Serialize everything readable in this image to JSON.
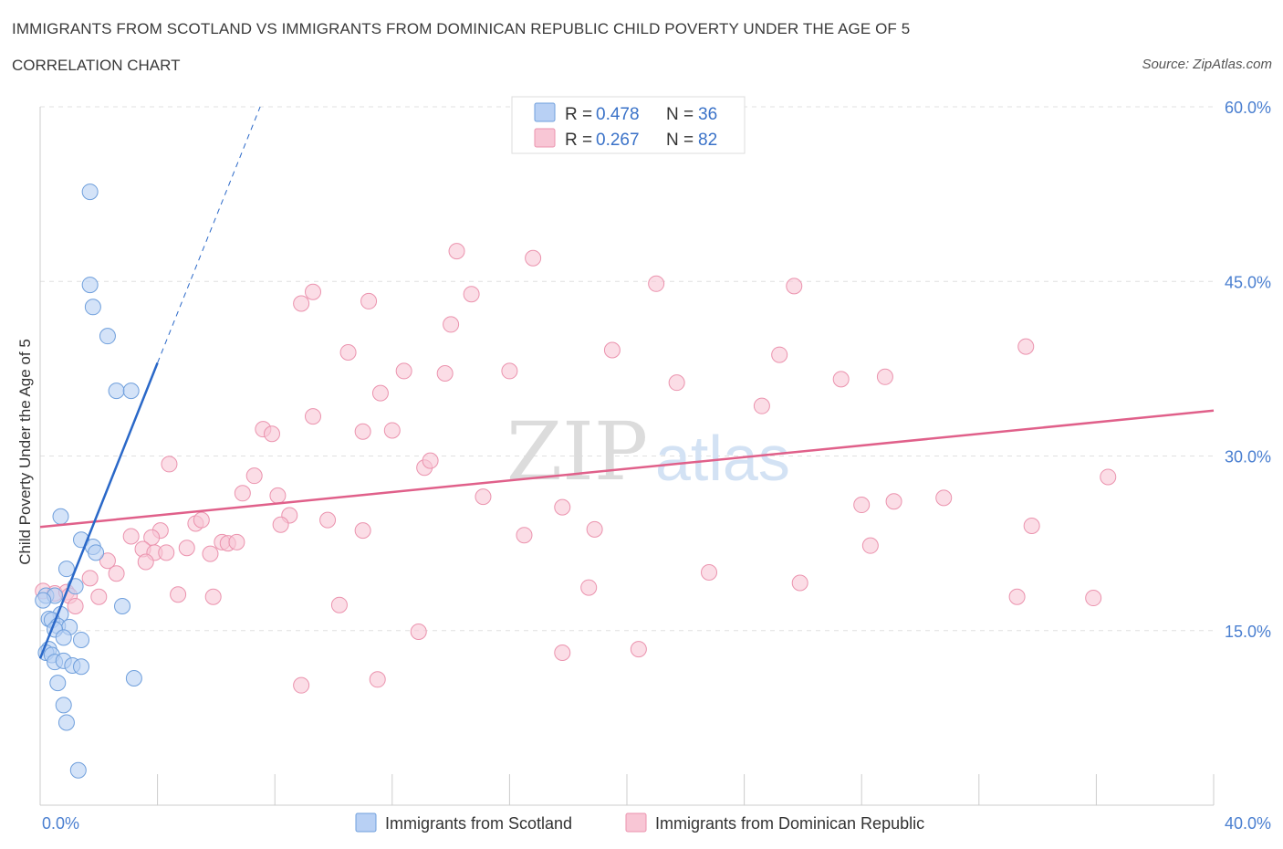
{
  "header": {
    "title": "IMMIGRANTS FROM SCOTLAND VS IMMIGRANTS FROM DOMINICAN REPUBLIC CHILD POVERTY UNDER THE AGE OF 5",
    "subtitle": "CORRELATION CHART",
    "source": "Source: ZipAtlas.com"
  },
  "watermark": {
    "zip": "ZIP",
    "atlas": "atlas"
  },
  "legend": {
    "rows": [
      {
        "r_label": "R = ",
        "r_value": "0.478",
        "n_label": "N = ",
        "n_value": "36"
      },
      {
        "r_label": "R = ",
        "r_value": "0.267",
        "n_label": "N = ",
        "n_value": "82"
      }
    ]
  },
  "colors": {
    "scotland_fill": "#b8d0f4",
    "scotland_stroke": "#6f9fdc",
    "scotland_line": "#2a68c8",
    "dominican_fill": "#f8c6d5",
    "dominican_stroke": "#eb93ae",
    "dominican_line": "#e0608a",
    "tick": "#4a7fd0",
    "grid": "#e0e0e0"
  },
  "chart_data": {
    "type": "scatter",
    "title": "IMMIGRANTS FROM SCOTLAND VS IMMIGRANTS FROM DOMINICAN REPUBLIC CHILD POVERTY UNDER THE AGE OF 5",
    "ylabel": "Child Poverty Under the Age of 5",
    "xlabel": "",
    "xlim": [
      0,
      40
    ],
    "ylim": [
      0,
      60
    ],
    "x_tick_labels": [
      "0.0%",
      "40.0%"
    ],
    "y_ticks": [
      15,
      30,
      45,
      60
    ],
    "y_tick_labels": [
      "15.0%",
      "30.0%",
      "45.0%",
      "60.0%"
    ],
    "grid": true,
    "legend_position": "top-center",
    "series": [
      {
        "name": "Immigrants from Scotland",
        "R": 0.478,
        "N": 36,
        "trend": {
          "x0": 0.0,
          "y0": 12.6,
          "x1": 4.0,
          "y1": 38.0,
          "dashed_to_x": 7.5,
          "dashed_to_y": 60.0
        },
        "points": [
          [
            1.7,
            52.7
          ],
          [
            1.7,
            44.7
          ],
          [
            1.8,
            42.8
          ],
          [
            2.3,
            40.3
          ],
          [
            2.6,
            35.6
          ],
          [
            3.1,
            35.6
          ],
          [
            0.7,
            24.8
          ],
          [
            1.4,
            22.8
          ],
          [
            1.8,
            22.2
          ],
          [
            1.9,
            21.7
          ],
          [
            0.9,
            20.3
          ],
          [
            1.2,
            18.8
          ],
          [
            0.2,
            18.0
          ],
          [
            0.5,
            18.0
          ],
          [
            0.1,
            17.6
          ],
          [
            2.8,
            17.1
          ],
          [
            0.7,
            16.4
          ],
          [
            0.3,
            16.0
          ],
          [
            0.4,
            15.9
          ],
          [
            0.6,
            15.4
          ],
          [
            1.0,
            15.3
          ],
          [
            0.5,
            15.1
          ],
          [
            0.8,
            14.4
          ],
          [
            1.4,
            14.2
          ],
          [
            0.3,
            13.4
          ],
          [
            0.2,
            13.1
          ],
          [
            0.4,
            12.9
          ],
          [
            0.5,
            12.3
          ],
          [
            0.8,
            12.4
          ],
          [
            1.1,
            12.0
          ],
          [
            1.4,
            11.9
          ],
          [
            0.6,
            10.5
          ],
          [
            3.2,
            10.9
          ],
          [
            0.8,
            8.6
          ],
          [
            0.9,
            7.1
          ],
          [
            1.3,
            3.0
          ]
        ]
      },
      {
        "name": "Immigrants from Dominican Republic",
        "R": 0.267,
        "N": 82,
        "trend": {
          "x0": 0.0,
          "y0": 23.9,
          "x1": 40.0,
          "y1": 33.9
        },
        "points": [
          [
            14.2,
            47.6
          ],
          [
            16.8,
            47.0
          ],
          [
            9.3,
            44.1
          ],
          [
            14.7,
            43.9
          ],
          [
            21.0,
            44.8
          ],
          [
            25.7,
            44.6
          ],
          [
            8.9,
            43.1
          ],
          [
            11.2,
            43.3
          ],
          [
            14.0,
            41.3
          ],
          [
            19.5,
            39.1
          ],
          [
            10.5,
            38.9
          ],
          [
            25.2,
            38.7
          ],
          [
            33.6,
            39.4
          ],
          [
            12.4,
            37.3
          ],
          [
            13.8,
            37.1
          ],
          [
            16.0,
            37.3
          ],
          [
            21.7,
            36.3
          ],
          [
            27.3,
            36.6
          ],
          [
            28.8,
            36.8
          ],
          [
            11.6,
            35.4
          ],
          [
            24.6,
            34.3
          ],
          [
            9.3,
            33.4
          ],
          [
            7.6,
            32.3
          ],
          [
            7.9,
            31.9
          ],
          [
            11.0,
            32.1
          ],
          [
            12.0,
            32.2
          ],
          [
            13.1,
            29.0
          ],
          [
            13.3,
            29.6
          ],
          [
            4.4,
            29.3
          ],
          [
            7.3,
            28.3
          ],
          [
            36.4,
            28.2
          ],
          [
            6.9,
            26.8
          ],
          [
            8.1,
            26.6
          ],
          [
            15.1,
            26.5
          ],
          [
            29.1,
            26.1
          ],
          [
            30.8,
            26.4
          ],
          [
            17.8,
            25.6
          ],
          [
            28.0,
            25.8
          ],
          [
            8.5,
            24.9
          ],
          [
            5.3,
            24.2
          ],
          [
            5.5,
            24.5
          ],
          [
            8.2,
            24.1
          ],
          [
            9.8,
            24.5
          ],
          [
            4.1,
            23.6
          ],
          [
            11.0,
            23.6
          ],
          [
            18.9,
            23.7
          ],
          [
            33.8,
            24.0
          ],
          [
            3.1,
            23.1
          ],
          [
            3.8,
            23.0
          ],
          [
            16.5,
            23.2
          ],
          [
            6.2,
            22.6
          ],
          [
            6.4,
            22.5
          ],
          [
            6.7,
            22.6
          ],
          [
            3.5,
            22.0
          ],
          [
            3.9,
            21.7
          ],
          [
            5.0,
            22.1
          ],
          [
            5.8,
            21.6
          ],
          [
            4.3,
            21.7
          ],
          [
            28.3,
            22.3
          ],
          [
            2.3,
            21.0
          ],
          [
            3.6,
            20.9
          ],
          [
            2.6,
            19.9
          ],
          [
            22.8,
            20.0
          ],
          [
            1.7,
            19.5
          ],
          [
            25.9,
            19.1
          ],
          [
            18.7,
            18.7
          ],
          [
            0.1,
            18.4
          ],
          [
            0.5,
            18.2
          ],
          [
            0.9,
            18.3
          ],
          [
            1.0,
            18.0
          ],
          [
            2.0,
            17.9
          ],
          [
            4.7,
            18.1
          ],
          [
            5.9,
            17.9
          ],
          [
            33.3,
            17.9
          ],
          [
            35.9,
            17.8
          ],
          [
            1.2,
            17.1
          ],
          [
            10.2,
            17.2
          ],
          [
            12.9,
            14.9
          ],
          [
            17.8,
            13.1
          ],
          [
            20.4,
            13.4
          ],
          [
            8.9,
            10.3
          ],
          [
            11.5,
            10.8
          ]
        ]
      }
    ]
  }
}
